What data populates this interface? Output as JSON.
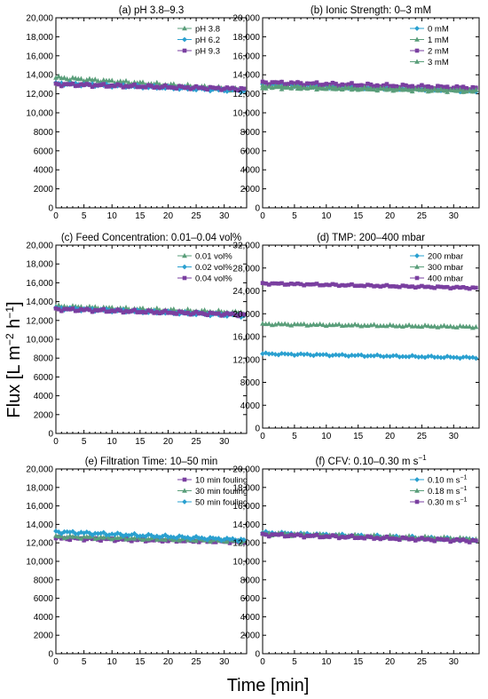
{
  "figure": {
    "ylabel_main": "Flux [L m",
    "ylabel_exp1": "−2",
    "ylabel_mid": " h",
    "ylabel_exp2": "−1",
    "ylabel_end": "]",
    "xlabel": "Time [min]"
  },
  "colors": {
    "green": "#5a9e7a",
    "cyan": "#2aa0d0",
    "purple": "#7a3fa0",
    "axis": "#000000"
  },
  "chart_data": [
    {
      "type": "line",
      "id": "a",
      "title": "(a) pH 3.8–9.3",
      "xlim": [
        0,
        34
      ],
      "ylim": [
        0,
        20000
      ],
      "xticks": [
        0,
        5,
        10,
        15,
        20,
        25,
        30
      ],
      "yticks": [
        0,
        2000,
        4000,
        6000,
        8000,
        10000,
        12000,
        14000,
        16000,
        18000,
        20000
      ],
      "ytick_labels": [
        "0",
        "2000",
        "4000",
        "6000",
        "8000",
        "10,000",
        "12,000",
        "14,000",
        "16,000",
        "18,000",
        "20,000"
      ],
      "series": [
        {
          "name": "pH 3.8",
          "color": "green",
          "marker": "triangle",
          "y_start": 13700,
          "y_end": 12400
        },
        {
          "name": "pH 6.2",
          "color": "cyan",
          "marker": "diamond",
          "y_start": 13100,
          "y_end": 12300
        },
        {
          "name": "pH 9.3",
          "color": "purple",
          "marker": "square",
          "y_start": 13000,
          "y_end": 12500
        }
      ]
    },
    {
      "type": "line",
      "id": "b",
      "title": "(b) Ionic Strength: 0–3 mM",
      "xlim": [
        0,
        34
      ],
      "ylim": [
        0,
        20000
      ],
      "xticks": [
        0,
        5,
        10,
        15,
        20,
        25,
        30
      ],
      "yticks": [
        0,
        2000,
        4000,
        6000,
        8000,
        10000,
        12000,
        14000,
        16000,
        18000,
        20000
      ],
      "ytick_labels": [
        "0",
        "2000",
        "4000",
        "6000",
        "8000",
        "10,000",
        "12,000",
        "14,000",
        "16,000",
        "18,000",
        "20,000"
      ],
      "series": [
        {
          "name": "0 mM",
          "color": "cyan",
          "marker": "diamond",
          "y_start": 13000,
          "y_end": 12300
        },
        {
          "name": "1 mM",
          "color": "green",
          "marker": "triangle",
          "y_start": 12800,
          "y_end": 12400
        },
        {
          "name": "2 mM",
          "color": "purple",
          "marker": "square",
          "y_start": 13200,
          "y_end": 12600
        },
        {
          "name": "3 mM",
          "color": "green",
          "marker": "triangle",
          "y_start": 12700,
          "y_end": 12300
        }
      ]
    },
    {
      "type": "line",
      "id": "c",
      "title": "(c) Feed Concentration: 0.01–0.04 vol%",
      "xlim": [
        0,
        34
      ],
      "ylim": [
        0,
        20000
      ],
      "xticks": [
        0,
        5,
        10,
        15,
        20,
        25,
        30
      ],
      "yticks": [
        0,
        2000,
        4000,
        6000,
        8000,
        10000,
        12000,
        14000,
        16000,
        18000,
        20000
      ],
      "ytick_labels": [
        "0",
        "2000",
        "4000",
        "6000",
        "8000",
        "10,000",
        "12,000",
        "14,000",
        "16,000",
        "18,000",
        "20,000"
      ],
      "series": [
        {
          "name": "0.01 vol%",
          "color": "green",
          "marker": "triangle",
          "y_start": 13500,
          "y_end": 12800
        },
        {
          "name": "0.02 vol%",
          "color": "cyan",
          "marker": "diamond",
          "y_start": 13300,
          "y_end": 12500
        },
        {
          "name": "0.04 vol%",
          "color": "purple",
          "marker": "square",
          "y_start": 13200,
          "y_end": 12600
        }
      ]
    },
    {
      "type": "line",
      "id": "d",
      "title": "(d) TMP: 200–400 mbar",
      "xlim": [
        0,
        34
      ],
      "ylim": [
        0,
        32000
      ],
      "xticks": [
        0,
        5,
        10,
        15,
        20,
        25,
        30
      ],
      "yticks": [
        0,
        4000,
        8000,
        12000,
        16000,
        20000,
        24000,
        28000,
        32000
      ],
      "ytick_labels": [
        "0",
        "4000",
        "8000",
        "12,000",
        "16,000",
        "20,000",
        "24,000",
        "28,000",
        "32,000"
      ],
      "series": [
        {
          "name": "200 mbar",
          "color": "cyan",
          "marker": "diamond",
          "y_start": 13000,
          "y_end": 12300
        },
        {
          "name": "300 mbar",
          "color": "green",
          "marker": "triangle",
          "y_start": 18200,
          "y_end": 17700
        },
        {
          "name": "400 mbar",
          "color": "purple",
          "marker": "square",
          "y_start": 25300,
          "y_end": 24500
        }
      ]
    },
    {
      "type": "line",
      "id": "e",
      "title": "(e) Filtration Time: 10–50 min",
      "xlim": [
        0,
        34
      ],
      "ylim": [
        0,
        20000
      ],
      "xticks": [
        0,
        5,
        10,
        15,
        20,
        25,
        30
      ],
      "yticks": [
        0,
        2000,
        4000,
        6000,
        8000,
        10000,
        12000,
        14000,
        16000,
        18000,
        20000
      ],
      "ytick_labels": [
        "0",
        "2000",
        "4000",
        "6000",
        "8000",
        "10,000",
        "12,000",
        "14,000",
        "16,000",
        "18,000",
        "20,000"
      ],
      "series": [
        {
          "name": "10 min fouling",
          "color": "purple",
          "marker": "square",
          "y_start": 12500,
          "y_end": 12100
        },
        {
          "name": "30 min fouling",
          "color": "green",
          "marker": "triangle",
          "y_start": 12700,
          "y_end": 12200
        },
        {
          "name": "50 min fouling",
          "color": "cyan",
          "marker": "diamond",
          "y_start": 13200,
          "y_end": 12300
        }
      ]
    },
    {
      "type": "line",
      "id": "f",
      "title": "(f) CFV: 0.10–0.30 m s",
      "title_sup": "−1",
      "xlim": [
        0,
        34
      ],
      "ylim": [
        0,
        20000
      ],
      "xticks": [
        0,
        5,
        10,
        15,
        20,
        25,
        30
      ],
      "yticks": [
        0,
        2000,
        4000,
        6000,
        8000,
        10000,
        12000,
        14000,
        16000,
        18000,
        20000
      ],
      "ytick_labels": [
        "0",
        "2000",
        "4000",
        "6000",
        "8000",
        "10,000",
        "12,000",
        "14,000",
        "16,000",
        "18,000",
        "20,000"
      ],
      "series": [
        {
          "name": "0.10 m s",
          "name_sup": "−1",
          "color": "cyan",
          "marker": "diamond",
          "y_start": 13100,
          "y_end": 12300
        },
        {
          "name": "0.18 m s",
          "name_sup": "−1",
          "color": "green",
          "marker": "triangle",
          "y_start": 13000,
          "y_end": 12400
        },
        {
          "name": "0.30 m s",
          "name_sup": "−1",
          "color": "purple",
          "marker": "square",
          "y_start": 12900,
          "y_end": 12200
        }
      ]
    }
  ]
}
